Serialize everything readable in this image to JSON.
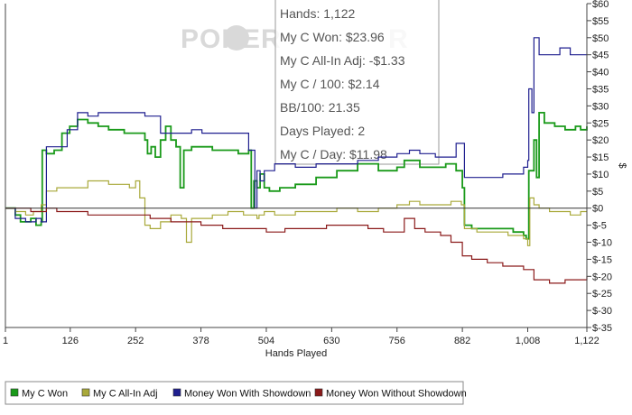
{
  "watermark": {
    "left": "POKER",
    "right": "R"
  },
  "tooltip": {
    "lines": [
      "Hands: 1,122",
      "My C Won: $23.96",
      "My C All-In Adj: -$1.33",
      "My C / 100: $2.14",
      "BB/100: 21.35",
      "Days Played: 2",
      "My C / Day: $11.98"
    ]
  },
  "chart_data": {
    "type": "line",
    "xlabel": "Hands Played",
    "ylabel": "$",
    "xlim": [
      1,
      1122
    ],
    "ylim": [
      -35,
      60
    ],
    "x_ticks": [
      1,
      126,
      252,
      378,
      504,
      630,
      756,
      882,
      1008,
      1122
    ],
    "x_tick_labels": [
      "1",
      "126",
      "252",
      "378",
      "504",
      "630",
      "756",
      "882",
      "1,008",
      "1,122"
    ],
    "y_ticks": [
      60,
      55,
      50,
      45,
      40,
      35,
      30,
      25,
      20,
      15,
      10,
      5,
      0,
      -5,
      -10,
      -15,
      -20,
      -25,
      -30,
      -35
    ],
    "y_tick_labels": [
      "$60",
      "$55",
      "$50",
      "$45",
      "$40",
      "$35",
      "$30",
      "$25",
      "$20",
      "$15",
      "$10",
      "$5",
      "$0",
      "$-5",
      "$-10",
      "$-15",
      "$-20",
      "$-25",
      "$-30",
      "$-35"
    ],
    "zero_line": 0,
    "grid": false,
    "legend_position": "bottom",
    "series": [
      {
        "name": "My C Won",
        "color": "#1a9a1a",
        "x": [
          1,
          20,
          30,
          50,
          60,
          70,
          72,
          80,
          95,
          110,
          125,
          140,
          160,
          180,
          200,
          230,
          252,
          270,
          275,
          282,
          290,
          300,
          310,
          320,
          330,
          338,
          345,
          360,
          380,
          400,
          420,
          450,
          470,
          475,
          480,
          486,
          492,
          500,
          510,
          530,
          560,
          600,
          640,
          680,
          720,
          756,
          770,
          800,
          830,
          850,
          870,
          882,
          886,
          900,
          920,
          950,
          980,
          1000,
          1005,
          1010,
          1020,
          1025,
          1030,
          1040,
          1060,
          1080,
          1100,
          1110,
          1122
        ],
        "y": [
          0,
          -2,
          -4,
          -3,
          -5,
          -4,
          17,
          16,
          17,
          22,
          24,
          26,
          25,
          24,
          23,
          22,
          22,
          20,
          16,
          18,
          15,
          20,
          24,
          20,
          18,
          6,
          17,
          18,
          18,
          17,
          17,
          16,
          17,
          0,
          8,
          6,
          10,
          6,
          5,
          6,
          7,
          9,
          11,
          13,
          11,
          12,
          14,
          12,
          12,
          13,
          11,
          6,
          -5,
          -6,
          -6,
          -6,
          -7,
          -8,
          -9,
          11,
          20,
          9,
          28,
          25,
          24,
          23,
          24,
          23,
          24
        ]
      },
      {
        "name": "My C All-In Adj",
        "color": "#a9a93a",
        "x": [
          1,
          20,
          40,
          55,
          70,
          80,
          100,
          126,
          160,
          200,
          240,
          252,
          260,
          270,
          280,
          300,
          320,
          340,
          350,
          360,
          378,
          400,
          430,
          460,
          486,
          490,
          500,
          520,
          560,
          600,
          640,
          680,
          720,
          756,
          780,
          800,
          830,
          860,
          880,
          886,
          910,
          940,
          970,
          1000,
          1008,
          1012,
          1020,
          1030,
          1050,
          1070,
          1090,
          1110,
          1122
        ],
        "y": [
          0,
          -1,
          -2,
          -1,
          1,
          5,
          6,
          6,
          8,
          7,
          6,
          8,
          3,
          -5,
          -6,
          -4,
          -2,
          -3,
          -10,
          -3,
          -3,
          -2,
          -1,
          -2,
          -3,
          -2,
          -1,
          -2,
          -1,
          -1,
          0,
          -1,
          0,
          1,
          2,
          1,
          1,
          2,
          1,
          -6,
          -7,
          -7,
          -8,
          -9,
          -11,
          3,
          1,
          0,
          -1,
          -1,
          -2,
          -1,
          -1
        ]
      },
      {
        "name": "Money Won With Showdown",
        "color": "#1f1f8f",
        "x": [
          1,
          20,
          40,
          60,
          70,
          80,
          100,
          120,
          140,
          160,
          180,
          200,
          230,
          252,
          270,
          300,
          330,
          360,
          380,
          400,
          420,
          450,
          470,
          482,
          486,
          492,
          500,
          520,
          560,
          600,
          640,
          680,
          720,
          756,
          780,
          800,
          830,
          870,
          882,
          886,
          920,
          960,
          1000,
          1008,
          1010,
          1016,
          1020,
          1030,
          1050,
          1070,
          1090,
          1110,
          1122
        ],
        "y": [
          0,
          -3,
          -4,
          -3,
          -4,
          18,
          18,
          23,
          28,
          27,
          28,
          28,
          28,
          28,
          27,
          22,
          22,
          23,
          22,
          22,
          22,
          22,
          17,
          0,
          11,
          8,
          11,
          13,
          12,
          13,
          13,
          14,
          15,
          16,
          17,
          16,
          15,
          19,
          19,
          9,
          9,
          10,
          12,
          14,
          35,
          28,
          50,
          45,
          45,
          47,
          45,
          45,
          45
        ]
      },
      {
        "name": "Money Won Without Showdown",
        "color": "#8b1a1a",
        "x": [
          1,
          20,
          50,
          80,
          100,
          126,
          160,
          200,
          252,
          280,
          320,
          350,
          378,
          420,
          460,
          504,
          540,
          580,
          620,
          660,
          700,
          730,
          756,
          770,
          790,
          810,
          840,
          860,
          882,
          900,
          930,
          960,
          1000,
          1020,
          1050,
          1080,
          1100,
          1122
        ],
        "y": [
          0,
          0,
          -1,
          0,
          -1,
          -1,
          -2,
          -2,
          -2,
          -3,
          -4,
          -4,
          -5,
          -6,
          -6,
          -7,
          -6,
          -6,
          -5,
          -5,
          -6,
          -7,
          -7,
          -3,
          -6,
          -7,
          -8,
          -10,
          -14,
          -15,
          -16,
          -17,
          -18,
          -21,
          -22,
          -21,
          -21,
          -20
        ]
      }
    ]
  }
}
